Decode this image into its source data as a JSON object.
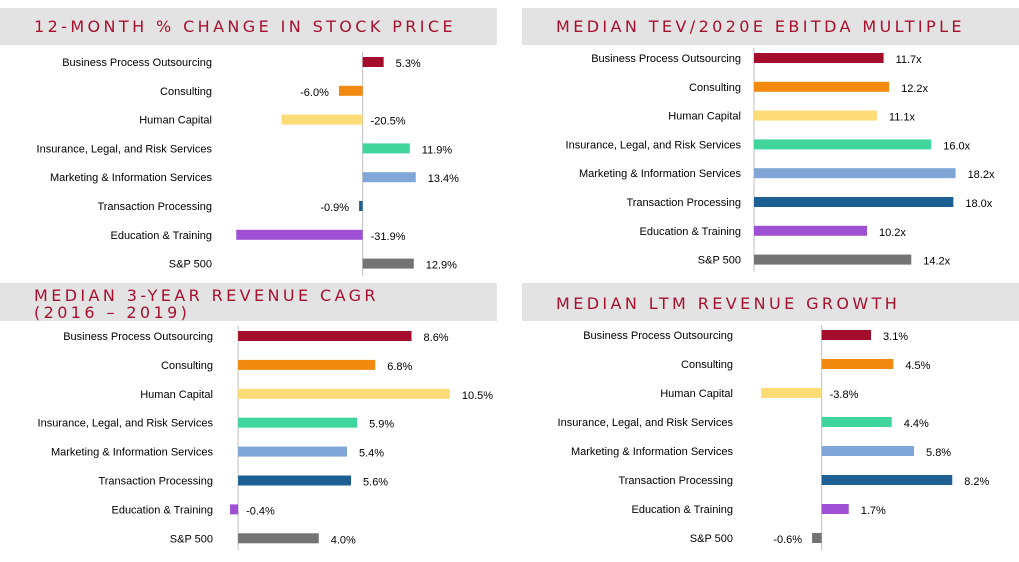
{
  "categories": [
    "Business Process Outsourcing",
    "Consulting",
    "Human Capital",
    "Insurance, Legal, and Risk Services",
    "Marketing & Information Services",
    "Transaction Processing",
    "Education & Training",
    "S&P 500"
  ],
  "colors": [
    "#a50d2c",
    "#f28a0f",
    "#fddc78",
    "#3fd59c",
    "#7fa6d6",
    "#1c5f92",
    "#9f4fd4",
    "#737373"
  ],
  "chart_data": [
    {
      "type": "bar",
      "orientation": "horizontal",
      "title": "12-MONTH % CHANGE IN STOCK PRICE",
      "categories": [
        "Business Process Outsourcing",
        "Consulting",
        "Human Capital",
        "Insurance, Legal, and Risk Services",
        "Marketing & Information Services",
        "Transaction Processing",
        "Education & Training",
        "S&P 500"
      ],
      "values": [
        5.3,
        -6.0,
        -20.5,
        11.9,
        13.4,
        -0.9,
        -31.9,
        12.9
      ],
      "labels": [
        "5.3%",
        "-6.0%",
        "-20.5%",
        "11.9%",
        "13.4%",
        "-0.9%",
        "-31.9%",
        "12.9%"
      ],
      "xlim": [
        -35,
        17
      ]
    },
    {
      "type": "bar",
      "orientation": "horizontal",
      "title": "MEDIAN TEV/2020E EBITDA MULTIPLE",
      "categories": [
        "Business Process Outsourcing",
        "Consulting",
        "Human Capital",
        "Insurance, Legal, and Risk Services",
        "Marketing & Information Services",
        "Transaction Processing",
        "Education & Training",
        "S&P 500"
      ],
      "values": [
        11.7,
        12.2,
        11.1,
        16.0,
        18.2,
        18.0,
        10.2,
        14.2
      ],
      "labels": [
        "11.7x",
        "12.2x",
        "11.1x",
        "16.0x",
        "18.2x",
        "18.0x",
        "10.2x",
        "14.2x"
      ],
      "xlim": [
        0,
        18.6
      ]
    },
    {
      "type": "bar",
      "orientation": "horizontal",
      "title": "MEDIAN 3-YEAR REVENUE CAGR\n(2016 – 2019)",
      "categories": [
        "Business Process Outsourcing",
        "Consulting",
        "Human Capital",
        "Insurance, Legal, and Risk Services",
        "Marketing & Information Services",
        "Transaction Processing",
        "Education & Training",
        "S&P 500"
      ],
      "values": [
        8.6,
        6.8,
        10.5,
        5.9,
        5.4,
        5.6,
        -0.4,
        4.0
      ],
      "labels": [
        "8.6%",
        "6.8%",
        "10.5%",
        "5.9%",
        "5.4%",
        "5.6%",
        "-0.4%",
        "4.0%"
      ],
      "xlim": [
        -0.6,
        11.5
      ]
    },
    {
      "type": "bar",
      "orientation": "horizontal",
      "title": "MEDIAN LTM REVENUE GROWTH",
      "categories": [
        "Business Process Outsourcing",
        "Consulting",
        "Human Capital",
        "Insurance, Legal, and Risk Services",
        "Marketing & Information Services",
        "Transaction Processing",
        "Education & Training",
        "S&P 500"
      ],
      "values": [
        3.1,
        4.5,
        -3.8,
        4.4,
        5.8,
        8.2,
        1.7,
        -0.6
      ],
      "labels": [
        "3.1%",
        "4.5%",
        "-3.8%",
        "4.4%",
        "5.8%",
        "8.2%",
        "1.7%",
        "-0.6%"
      ],
      "xlim": [
        -5,
        9
      ]
    }
  ]
}
